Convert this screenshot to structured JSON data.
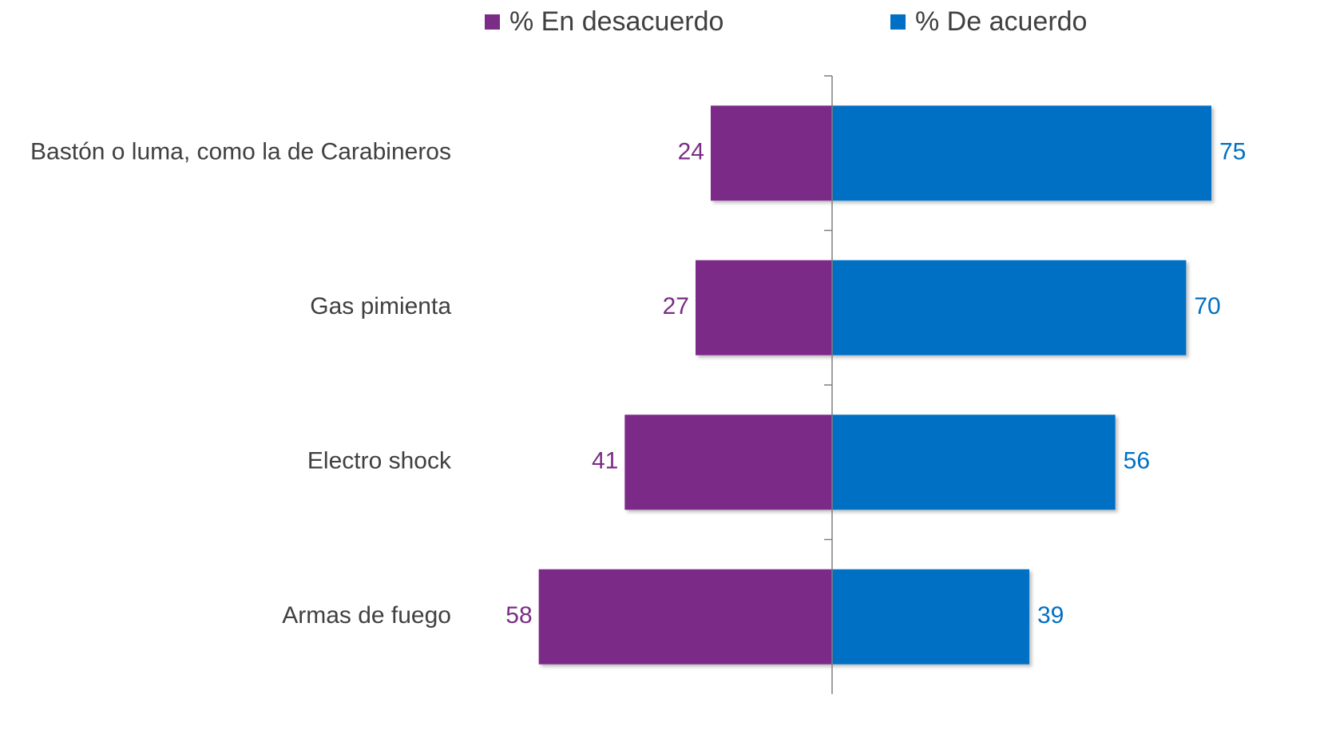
{
  "chart_data": {
    "type": "diverging_bar",
    "categories": [
      "Bastón o luma, como la de Carabineros",
      "Gas pimienta",
      "Electro shock",
      "Armas de fuego"
    ],
    "series": [
      {
        "name": "% En desacuerdo",
        "color": "#7B2C87",
        "values": [
          24,
          27,
          41,
          58
        ]
      },
      {
        "name": "% De acuerdo",
        "color": "#0070C4",
        "values": [
          75,
          70,
          56,
          39
        ]
      }
    ]
  }
}
